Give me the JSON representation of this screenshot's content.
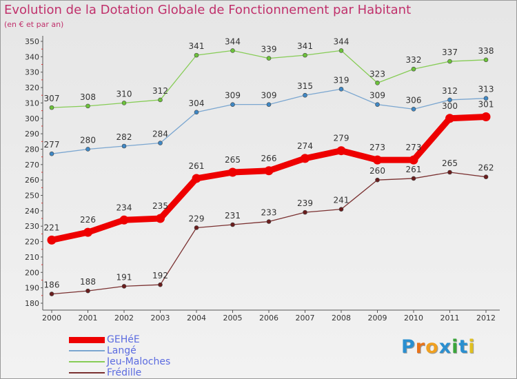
{
  "logo": {
    "text": "Proxiti",
    "letter_colors": [
      "#2a8fd0",
      "#e8731a",
      "#f0a020",
      "#2a8fd0",
      "#3aa53a",
      "#2a8fd0",
      "#e0c020"
    ]
  },
  "chart_data": {
    "type": "line",
    "title": "Evolution de la Dotation Globale de Fonctionnement par Habitant",
    "subtitle": "(en € et par an)",
    "xlabel": "",
    "ylabel": "",
    "ylim": [
      180,
      350
    ],
    "yticks": [
      180,
      190,
      200,
      210,
      220,
      230,
      240,
      250,
      260,
      270,
      280,
      290,
      300,
      310,
      320,
      330,
      340,
      350
    ],
    "grid": false,
    "x": [
      "2000",
      "2001",
      "2002",
      "2003",
      "2004",
      "2005",
      "2006",
      "2007",
      "2008",
      "2009",
      "2010",
      "2011",
      "2012"
    ],
    "series": [
      {
        "name": "GEHéE",
        "color": "#ee0000",
        "marker_color": "#ee0000",
        "emphasis": true,
        "values": [
          221,
          226,
          234,
          235,
          261,
          265,
          266,
          274,
          279,
          273,
          273,
          300,
          301
        ]
      },
      {
        "name": "Langé",
        "color": "#7aa6d0",
        "marker_color": "#3f88c5",
        "emphasis": false,
        "values": [
          277,
          280,
          282,
          284,
          304,
          309,
          309,
          315,
          319,
          309,
          306,
          312,
          313
        ]
      },
      {
        "name": "Jeu-Maloches",
        "color": "#86cc55",
        "marker_color": "#6cc23a",
        "emphasis": false,
        "values": [
          307,
          308,
          310,
          312,
          341,
          344,
          339,
          341,
          344,
          323,
          332,
          337,
          338
        ]
      },
      {
        "name": "Frédille",
        "color": "#7a3030",
        "marker_color": "#6a1d1d",
        "emphasis": false,
        "values": [
          186,
          188,
          191,
          192,
          229,
          231,
          233,
          239,
          241,
          260,
          261,
          265,
          262
        ]
      }
    ],
    "legend_position": "bottom-left"
  }
}
